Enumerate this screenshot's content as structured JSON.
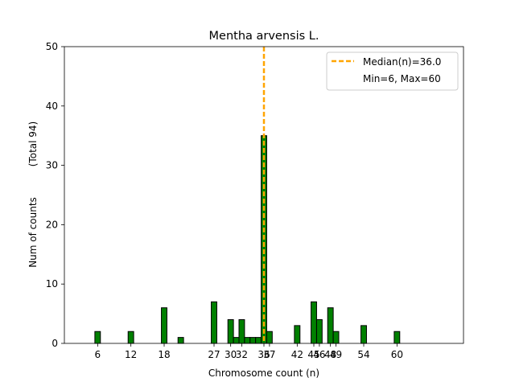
{
  "chart_data": {
    "type": "bar",
    "title": "Mentha arvensis L.",
    "xlabel": "Chromosome count (n)",
    "ylabel": "Num of counts",
    "ylabel_secondary": "(Total 94)",
    "xlim": [
      0,
      72
    ],
    "ylim": [
      0,
      50
    ],
    "yticks": [
      0,
      10,
      20,
      30,
      40,
      50
    ],
    "xticks": [
      6,
      12,
      18,
      27,
      30,
      32,
      36,
      37,
      42,
      45,
      46,
      48,
      49,
      54,
      60
    ],
    "bar_color": "#008000",
    "bar_edge_color": "#000000",
    "median_color": "#FFA500",
    "bars": [
      {
        "x": 6,
        "value": 2
      },
      {
        "x": 12,
        "value": 2
      },
      {
        "x": 18,
        "value": 6
      },
      {
        "x": 21,
        "value": 1
      },
      {
        "x": 27,
        "value": 7
      },
      {
        "x": 30,
        "value": 4
      },
      {
        "x": 31,
        "value": 1
      },
      {
        "x": 32,
        "value": 4
      },
      {
        "x": 33,
        "value": 1
      },
      {
        "x": 34,
        "value": 1
      },
      {
        "x": 35,
        "value": 1
      },
      {
        "x": 36,
        "value": 35
      },
      {
        "x": 37,
        "value": 2
      },
      {
        "x": 42,
        "value": 3
      },
      {
        "x": 45,
        "value": 7
      },
      {
        "x": 46,
        "value": 4
      },
      {
        "x": 48,
        "value": 6
      },
      {
        "x": 49,
        "value": 2
      },
      {
        "x": 54,
        "value": 3
      },
      {
        "x": 60,
        "value": 2
      }
    ],
    "median": 36.0,
    "legend": {
      "placement": "top-right",
      "median_label": "Median(n)=36.0",
      "minmax_label": "Min=6, Max=60"
    }
  }
}
